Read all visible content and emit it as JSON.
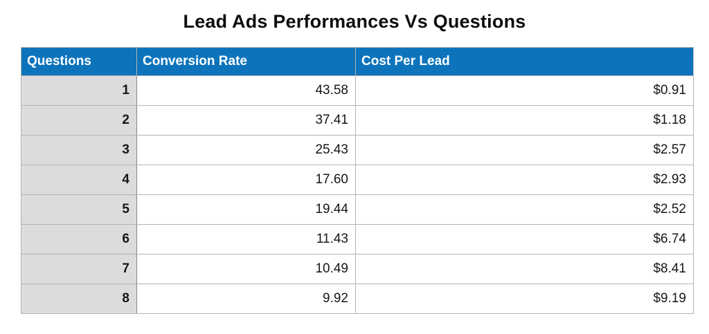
{
  "title": "Lead Ads Performances Vs Questions",
  "chart_data": {
    "type": "table",
    "title": "Lead Ads Performances Vs Questions",
    "columns": [
      "Questions",
      "Conversion Rate",
      "Cost Per Lead"
    ],
    "rows": [
      [
        "1",
        "43.58",
        "$0.91"
      ],
      [
        "2",
        "37.41",
        "$1.18"
      ],
      [
        "3",
        "25.43",
        "$2.57"
      ],
      [
        "4",
        "17.60",
        "$2.93"
      ],
      [
        "5",
        "19.44",
        "$2.52"
      ],
      [
        "6",
        "11.43",
        "$6.74"
      ],
      [
        "7",
        "10.49",
        "$8.41"
      ],
      [
        "8",
        "9.92",
        "$9.19"
      ]
    ],
    "series": [
      {
        "name": "Conversion Rate",
        "values": [
          43.58,
          37.41,
          25.43,
          17.6,
          19.44,
          11.43,
          10.49,
          9.92
        ]
      },
      {
        "name": "Cost Per Lead",
        "values": [
          0.91,
          1.18,
          2.57,
          2.93,
          2.52,
          6.74,
          8.41,
          9.19
        ]
      }
    ],
    "categories": [
      1,
      2,
      3,
      4,
      5,
      6,
      7,
      8
    ]
  },
  "colors": {
    "header_bg": "#0d74bc",
    "header_text": "#ffffff",
    "row_label_bg": "#dcdcdc",
    "cell_bg": "#ffffff",
    "border": "#b3b3b3",
    "text": "#161616"
  }
}
